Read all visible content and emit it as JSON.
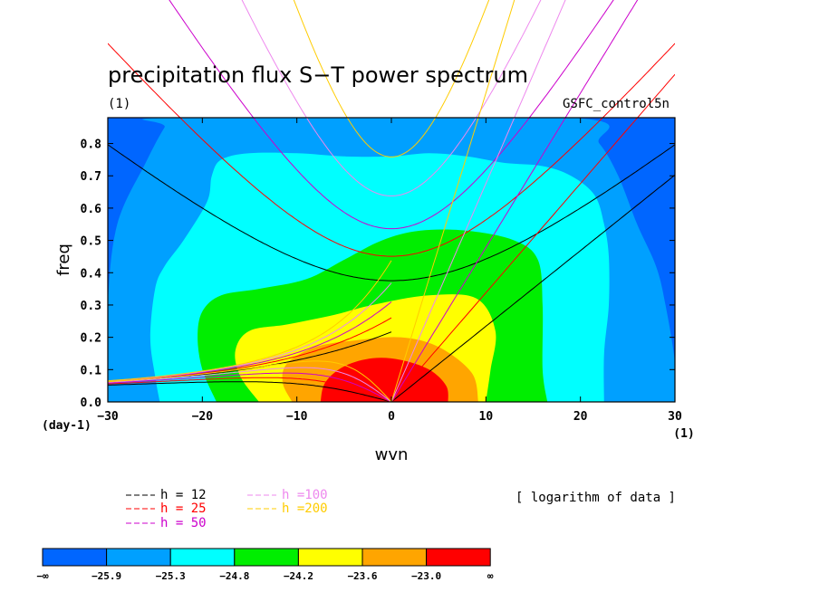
{
  "chart_data": {
    "type": "heatmap",
    "title": "precipitation flux S−T power spectrum",
    "subtitle_left": "(1)",
    "subtitle_right": "GSFC_control5n",
    "xlabel": "wvn",
    "ylabel": "freq",
    "x_unit": "(1)",
    "y_unit": "(day-1)",
    "xlim": [
      -30,
      30
    ],
    "ylim": [
      0,
      0.88
    ],
    "x_ticks": [
      -30,
      -20,
      -10,
      0,
      10,
      20,
      30
    ],
    "x_tick_labels": [
      "−30",
      "−20",
      "−10",
      "0",
      "10",
      "20",
      "30"
    ],
    "y_ticks": [
      0,
      0.1,
      0.2,
      0.3,
      0.4,
      0.5,
      0.6,
      0.7,
      0.8
    ],
    "y_tick_labels": [
      "0.0",
      "0.1",
      "0.2",
      "0.3",
      "0.4",
      "0.5",
      "0.6",
      "0.7",
      "0.8"
    ],
    "note": "[ logarithm of data ]",
    "contour_levels": [
      -25.9,
      -25.3,
      -24.8,
      -24.2,
      -23.6,
      -23.0
    ],
    "colorbar_labels": [
      "−∞",
      "−25.9",
      "−25.3",
      "−24.8",
      "−24.2",
      "−23.6",
      "−23.0",
      "∞"
    ],
    "colorbar_colors": [
      "#0066ff",
      "#00a0ff",
      "#00ffff",
      "#00ee00",
      "#ffff00",
      "#ffa500",
      "#ff0000"
    ],
    "bands": [
      {
        "level": "-25.9..-25.3",
        "color": "#00a0ff",
        "shape": [
          [
            -30,
            0
          ],
          [
            -30,
            0.3
          ],
          [
            -29,
            0.55
          ],
          [
            -26,
            0.74
          ],
          [
            -24,
            0.85
          ],
          [
            -23,
            0.88
          ],
          [
            19,
            0.88
          ],
          [
            22,
            0.8
          ],
          [
            24,
            0.7
          ],
          [
            26,
            0.55
          ],
          [
            28,
            0.42
          ],
          [
            29,
            0.3
          ],
          [
            30,
            0.12
          ],
          [
            30,
            0
          ]
        ]
      },
      {
        "level": "-25.3..-24.8",
        "color": "#00ffff",
        "shape": [
          [
            -24.5,
            0
          ],
          [
            -25,
            0.08
          ],
          [
            -25.5,
            0.2
          ],
          [
            -25,
            0.35
          ],
          [
            -24,
            0.42
          ],
          [
            -22,
            0.5
          ],
          [
            -19.5,
            0.62
          ],
          [
            -19,
            0.7
          ],
          [
            -18,
            0.75
          ],
          [
            -15,
            0.77
          ],
          [
            -10,
            0.77
          ],
          [
            -5,
            0.76
          ],
          [
            0,
            0.76
          ],
          [
            4,
            0.77
          ],
          [
            8,
            0.76
          ],
          [
            12,
            0.74
          ],
          [
            16,
            0.73
          ],
          [
            19,
            0.7
          ],
          [
            21.5,
            0.64
          ],
          [
            22.5,
            0.55
          ],
          [
            23,
            0.45
          ],
          [
            23,
            0.3
          ],
          [
            22.5,
            0.15
          ],
          [
            22.5,
            0
          ]
        ]
      },
      {
        "level": "-24.8..-24.2",
        "color": "#00ee00",
        "shape": [
          [
            -18.5,
            0
          ],
          [
            -20,
            0.1
          ],
          [
            -20.5,
            0.2
          ],
          [
            -20,
            0.28
          ],
          [
            -18,
            0.33
          ],
          [
            -14,
            0.35
          ],
          [
            -9,
            0.38
          ],
          [
            -5,
            0.44
          ],
          [
            -1,
            0.5
          ],
          [
            3,
            0.53
          ],
          [
            8,
            0.53
          ],
          [
            13,
            0.5
          ],
          [
            15.5,
            0.44
          ],
          [
            16,
            0.3
          ],
          [
            16,
            0.1
          ],
          [
            16.5,
            0
          ]
        ]
      },
      {
        "level": "-24.2..-23.6",
        "color": "#ffff00",
        "shape": [
          [
            -14,
            0
          ],
          [
            -16,
            0.08
          ],
          [
            -16.5,
            0.16
          ],
          [
            -15,
            0.22
          ],
          [
            -11,
            0.24
          ],
          [
            -6,
            0.27
          ],
          [
            -2,
            0.3
          ],
          [
            4,
            0.33
          ],
          [
            9,
            0.32
          ],
          [
            11,
            0.22
          ],
          [
            10.5,
            0.1
          ],
          [
            10,
            0
          ]
        ]
      },
      {
        "level": "-23.6..-23.0",
        "color": "#ffa500",
        "shape": [
          [
            -10.5,
            0
          ],
          [
            -11.5,
            0.06
          ],
          [
            -11,
            0.12
          ],
          [
            -8,
            0.17
          ],
          [
            -4,
            0.19
          ],
          [
            1,
            0.2
          ],
          [
            5,
            0.17
          ],
          [
            8.5,
            0.09
          ],
          [
            9.2,
            0
          ]
        ]
      },
      {
        "level": ">-23.0",
        "color": "#ff0000",
        "shape": [
          [
            -7.5,
            0
          ],
          [
            -7,
            0.06
          ],
          [
            -5,
            0.11
          ],
          [
            -2,
            0.135
          ],
          [
            1,
            0.13
          ],
          [
            4,
            0.1
          ],
          [
            5.8,
            0.05
          ],
          [
            6,
            0
          ]
        ]
      }
    ],
    "series": [
      {
        "name": "h = 12",
        "h": 12,
        "color": "#000000"
      },
      {
        "name": "h = 25",
        "h": 25,
        "color": "#ff0000"
      },
      {
        "name": "h = 50",
        "h": 50,
        "color": "#cc00cc"
      },
      {
        "name": "h =100",
        "h": 100,
        "color": "#ee88ee"
      },
      {
        "name": "h =200",
        "h": 200,
        "color": "#ffcc00"
      }
    ]
  }
}
